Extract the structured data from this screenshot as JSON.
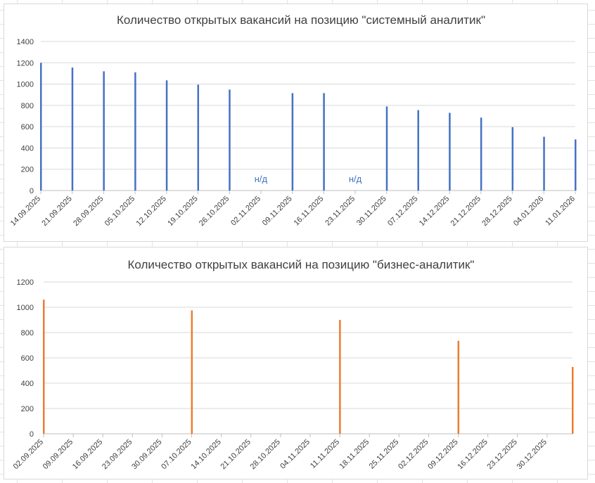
{
  "chart_data": [
    {
      "type": "bar",
      "title": "Количество открытых вакансий на позицию \"системный аналитик\"",
      "color": "#4472c4",
      "ylim": [
        0,
        1400
      ],
      "yticks": [
        0,
        200,
        400,
        600,
        800,
        1000,
        1200,
        1400
      ],
      "grid": true,
      "categories": [
        "14.09.2025",
        "21.09.2025",
        "28.09.2025",
        "05.10.2025",
        "12.10.2025",
        "19.10.2025",
        "26.10.2025",
        "02.11.2025",
        "09.11.2025",
        "16.11.2025",
        "23.11.2025",
        "30.11.2025",
        "07.12.2025",
        "14.12.2025",
        "21.12.2025",
        "28.12.2025",
        "04.01.2026",
        "11.01.2026"
      ],
      "values": [
        1200,
        1155,
        1120,
        1110,
        1035,
        995,
        948,
        null,
        915,
        915,
        null,
        790,
        755,
        730,
        685,
        595,
        505,
        480
      ],
      "annotations": [
        {
          "category": "02.11.2025",
          "text": "н/д"
        },
        {
          "category": "23.11.2025",
          "text": "н/д"
        }
      ]
    },
    {
      "type": "bar",
      "title": "Количество открытых вакансий на позицию \"бизнес-аналитик\"",
      "color": "#ed7d31",
      "ylim": [
        0,
        1200
      ],
      "yticks": [
        0,
        200,
        400,
        600,
        800,
        1000,
        1200
      ],
      "grid": true,
      "x_tick_labels": [
        "02.09.2025",
        "09.09.2025",
        "16.09.2025",
        "23.09.2025",
        "30.09.2025",
        "07.10.2025",
        "14.10.2025",
        "21.10.2025",
        "28.10.2025",
        "04.11.2025",
        "11.11.2025",
        "18.11.2025",
        "25.11.2025",
        "02.12.2025",
        "09.12.2025",
        "16.12.2025",
        "23.12.2025",
        "30.12.2025"
      ],
      "x_range": [
        "2025-09-02",
        "2026-01-05"
      ],
      "points": [
        {
          "date": "2025-09-02",
          "value": 1060
        },
        {
          "date": "2025-10-07",
          "value": 975
        },
        {
          "date": "2025-11-11",
          "value": 900
        },
        {
          "date": "2025-12-09",
          "value": 735
        },
        {
          "date": "2026-01-05",
          "value": 528
        }
      ]
    }
  ]
}
